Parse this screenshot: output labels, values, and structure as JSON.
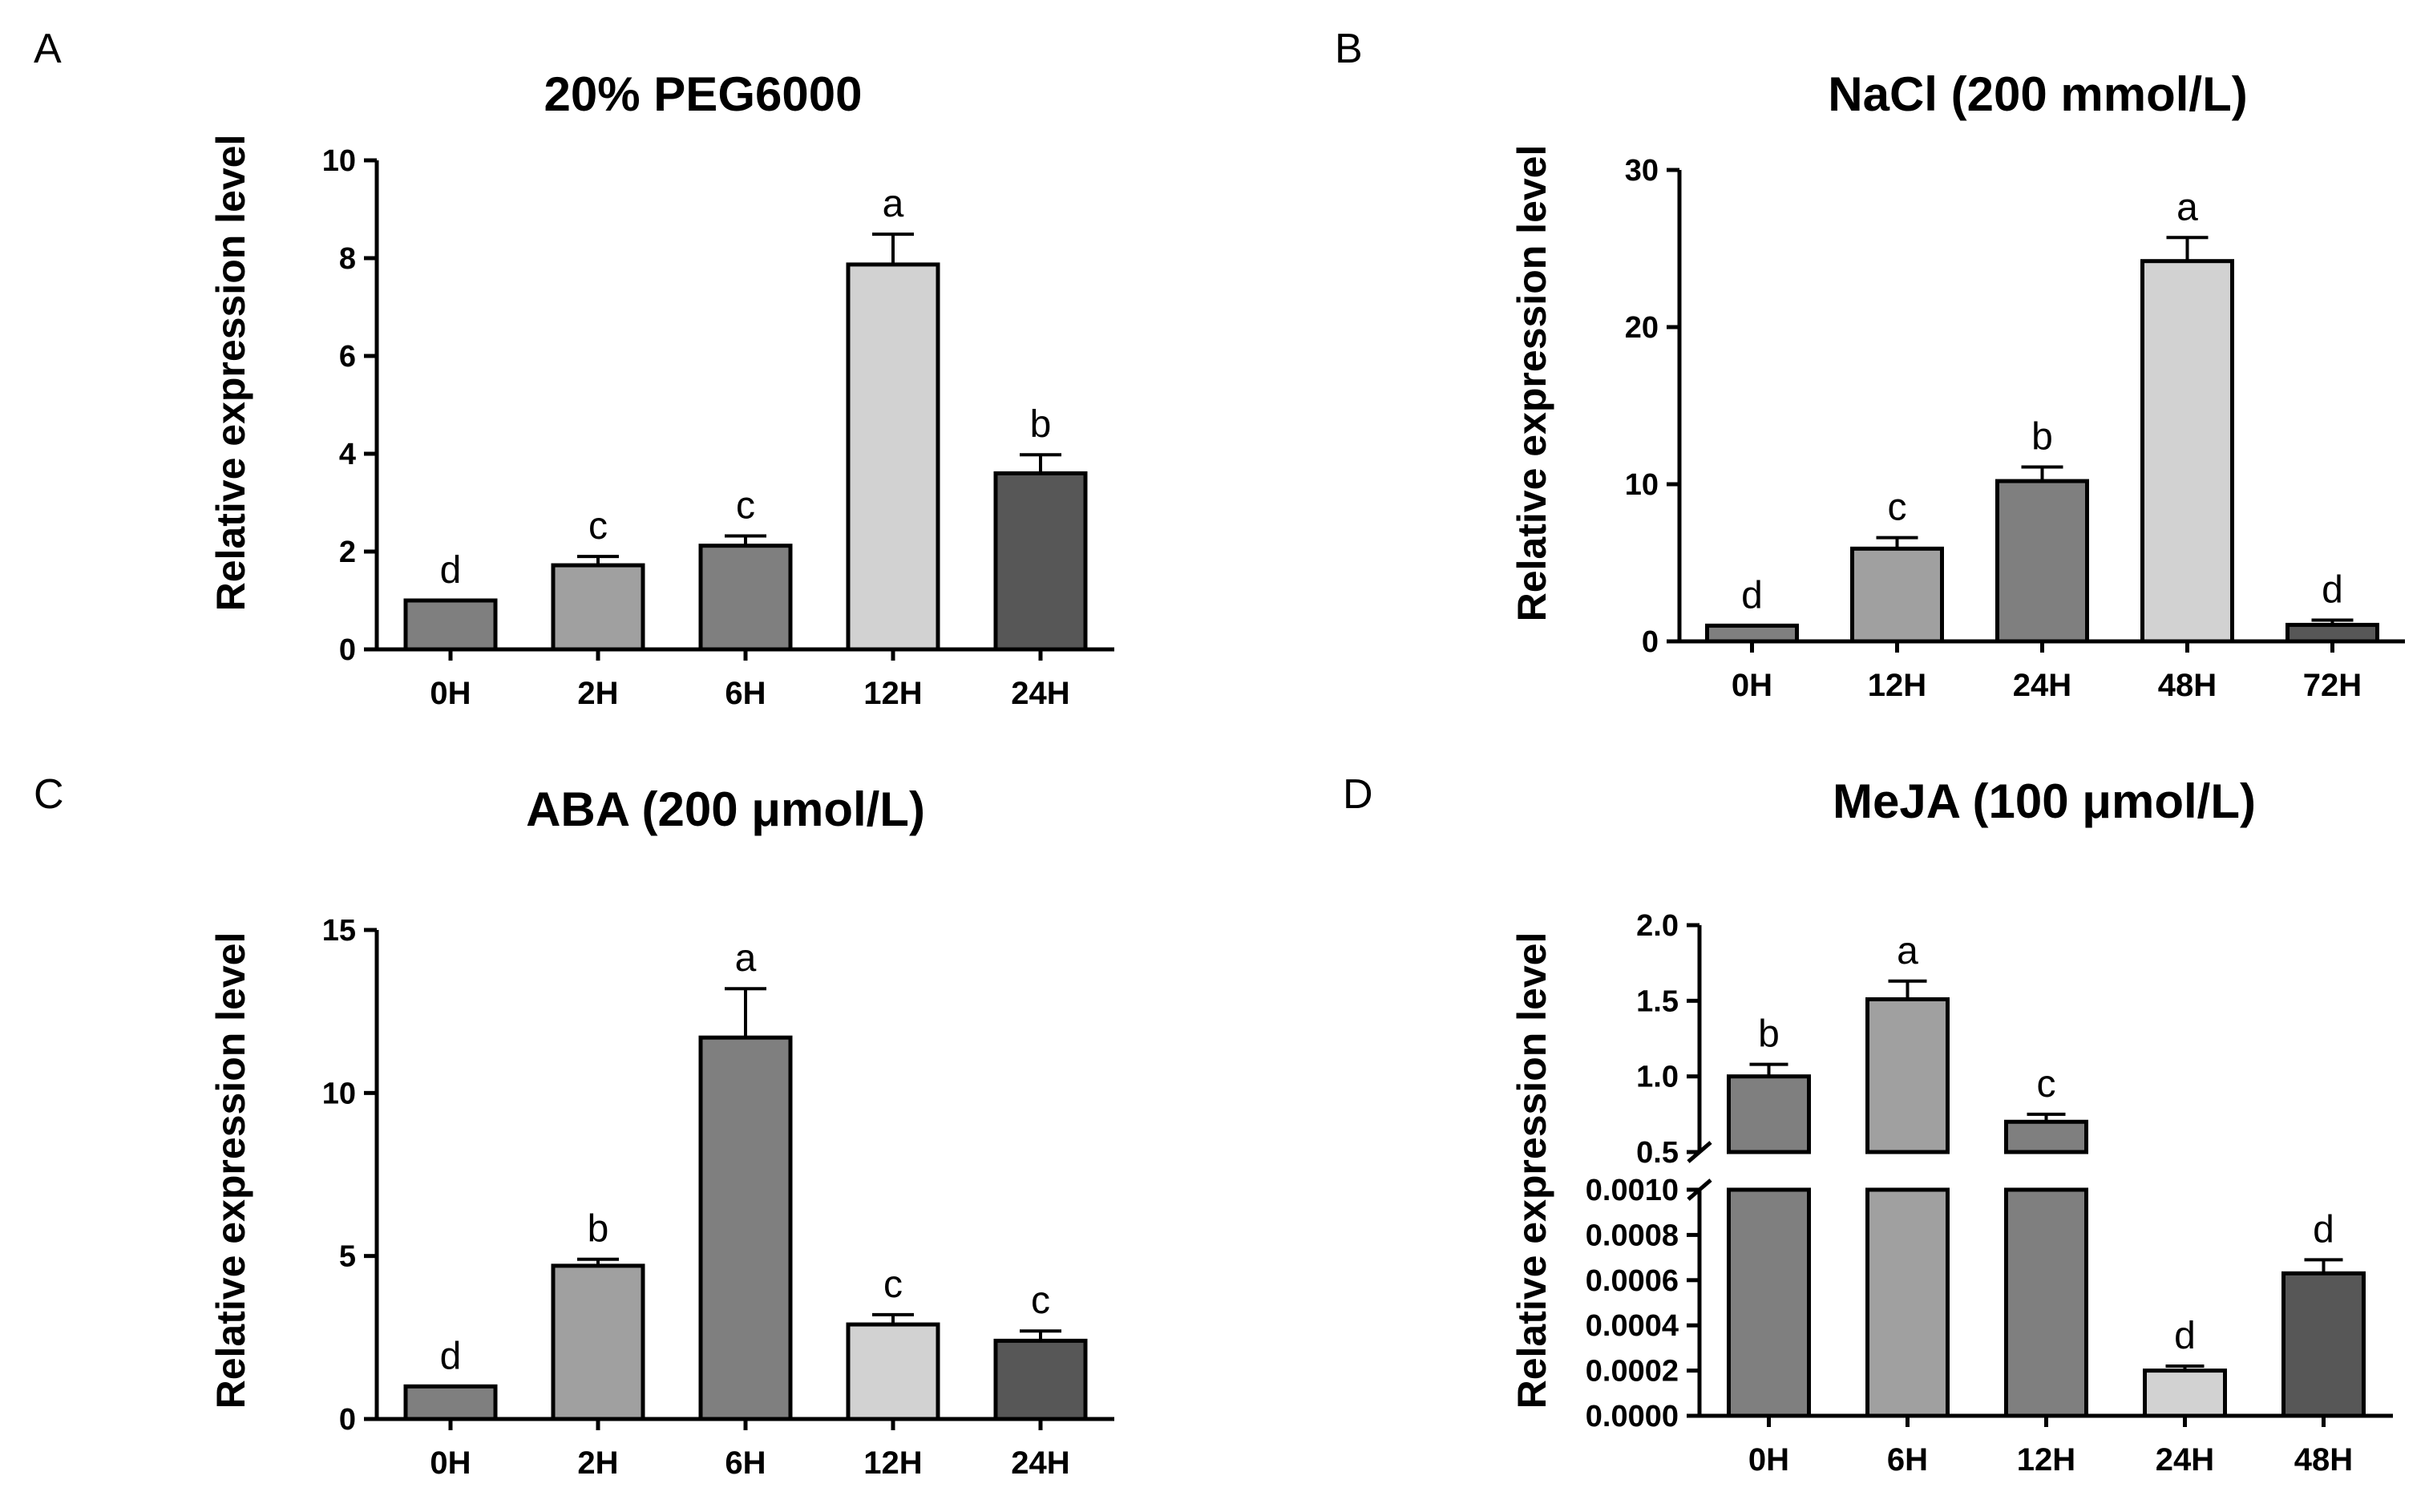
{
  "figure": {
    "panels": [
      "A",
      "B",
      "C",
      "D"
    ]
  },
  "chart_data": [
    {
      "panel": "A",
      "type": "bar",
      "title": "20% PEG6000",
      "xlabel": "",
      "ylabel": "Relative expression level",
      "ylim": [
        0,
        10
      ],
      "yticks": [
        0,
        2,
        4,
        6,
        8,
        10
      ],
      "ytick_labels": [
        "0",
        "2",
        "4",
        "6",
        "8",
        "10"
      ],
      "categories": [
        "0H",
        "2H",
        "6H",
        "12H",
        "24H"
      ],
      "values": [
        1.0,
        1.72,
        2.12,
        7.87,
        3.6
      ],
      "errors": [
        0.0,
        0.18,
        0.2,
        0.62,
        0.38
      ],
      "letters": [
        "d",
        "c",
        "c",
        "a",
        "b"
      ],
      "colors": [
        "#7f7f7f",
        "#a0a0a0",
        "#7f7f7f",
        "#d2d2d2",
        "#575757"
      ]
    },
    {
      "panel": "B",
      "type": "bar",
      "title": "NaCl (200 mmol/L)",
      "xlabel": "",
      "ylabel": "Relative expression level",
      "ylim": [
        0,
        30
      ],
      "yticks": [
        0,
        10,
        20,
        30
      ],
      "ytick_labels": [
        "0",
        "10",
        "20",
        "30"
      ],
      "categories": [
        "0H",
        "12H",
        "24H",
        "48H",
        "72H"
      ],
      "values": [
        1.0,
        5.9,
        10.2,
        24.2,
        1.05
      ],
      "errors": [
        0.0,
        0.7,
        0.9,
        1.5,
        0.3
      ],
      "letters": [
        "d",
        "c",
        "b",
        "a",
        "d"
      ],
      "colors": [
        "#7f7f7f",
        "#a0a0a0",
        "#7f7f7f",
        "#d2d2d2",
        "#575757"
      ]
    },
    {
      "panel": "C",
      "type": "bar",
      "title": "ABA (200 μmol/L)",
      "xlabel": "",
      "ylabel": "Relative expression level",
      "ylim": [
        0,
        15
      ],
      "yticks": [
        0,
        5,
        10,
        15
      ],
      "ytick_labels": [
        "0",
        "5",
        "10",
        "15"
      ],
      "categories": [
        "0H",
        "2H",
        "6H",
        "12H",
        "24H"
      ],
      "values": [
        1.0,
        4.7,
        11.7,
        2.9,
        2.4
      ],
      "errors": [
        0.0,
        0.2,
        1.5,
        0.3,
        0.3
      ],
      "letters": [
        "d",
        "b",
        "a",
        "c",
        "c"
      ],
      "colors": [
        "#7f7f7f",
        "#a0a0a0",
        "#7f7f7f",
        "#d2d2d2",
        "#575757"
      ]
    },
    {
      "panel": "D",
      "type": "bar",
      "title": "MeJA (100 μmol/L)",
      "xlabel": "",
      "ylabel": "Relative expression level",
      "broken_axis": true,
      "upper_ylim": [
        0.5,
        2.0
      ],
      "upper_yticks": [
        0.5,
        1.0,
        1.5,
        2.0
      ],
      "upper_ytick_labels": [
        "0.5",
        "1.0",
        "1.5",
        "2.0"
      ],
      "lower_ylim": [
        0,
        0.001
      ],
      "lower_yticks": [
        0,
        0.0002,
        0.0004,
        0.0006,
        0.0008,
        0.001
      ],
      "lower_ytick_labels": [
        "0.0000",
        "0.0002",
        "0.0004",
        "0.0006",
        "0.0008",
        "0.0010"
      ],
      "categories": [
        "0H",
        "6H",
        "12H",
        "24H",
        "48H"
      ],
      "values": [
        1.0,
        1.51,
        0.7,
        0.0002,
        0.00063
      ],
      "errors": [
        0.08,
        0.12,
        0.05,
        2e-05,
        6e-05
      ],
      "letters": [
        "b",
        "a",
        "c",
        "d",
        "d"
      ],
      "colors": [
        "#7f7f7f",
        "#a0a0a0",
        "#7f7f7f",
        "#d2d2d2",
        "#575757"
      ]
    }
  ]
}
